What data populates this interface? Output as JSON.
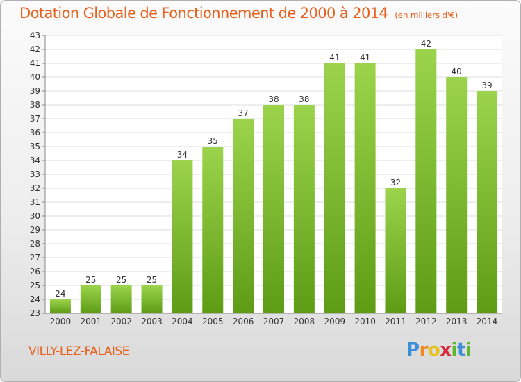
{
  "header": {
    "title": "Dotation Globale de Fonctionnement de 2000 à 2014",
    "subtitle": "(en milliers d'€)"
  },
  "footer": {
    "commune": "VILLY-LEZ-FALAISE",
    "logo_text": "Proxiti",
    "logo_letters": [
      {
        "ch": "P",
        "color": "#3a8fd6"
      },
      {
        "ch": "r",
        "color": "#f08a1c"
      },
      {
        "ch": "o",
        "color": "#e8c21c"
      },
      {
        "ch": "x",
        "color": "#d8263a"
      },
      {
        "ch": "i",
        "color": "#5cb82a"
      },
      {
        "ch": "t",
        "color": "#3a8fd6"
      },
      {
        "ch": "i",
        "color": "#5cb82a"
      }
    ]
  },
  "colors": {
    "bar_top": "#9bd44c",
    "bar_bottom": "#5e9c16",
    "text_accent": "#e8601c",
    "axis": "#888888",
    "grid": "#dddddd"
  },
  "chart_data": {
    "type": "bar",
    "categories": [
      "2000",
      "2001",
      "2002",
      "2003",
      "2004",
      "2005",
      "2006",
      "2007",
      "2008",
      "2009",
      "2010",
      "2011",
      "2012",
      "2013",
      "2014"
    ],
    "values": [
      24,
      25,
      25,
      25,
      34,
      35,
      37,
      38,
      38,
      41,
      41,
      32,
      42,
      40,
      39
    ],
    "data_labels": [
      "24",
      "25",
      "25",
      "25",
      "34",
      "35",
      "37",
      "38",
      "38",
      "41",
      "41",
      "32",
      "42",
      "40",
      "39"
    ],
    "yticks": [
      "23",
      "24",
      "25",
      "26",
      "27",
      "28",
      "29",
      "30",
      "31",
      "32",
      "33",
      "34",
      "35",
      "36",
      "37",
      "38",
      "39",
      "40",
      "41",
      "42",
      "43"
    ],
    "ylim": [
      23,
      43
    ],
    "grid": true,
    "title": "Dotation Globale de Fonctionnement de 2000 à 2014",
    "subtitle": "(en milliers d'€)",
    "xlabel": "",
    "ylabel": ""
  }
}
